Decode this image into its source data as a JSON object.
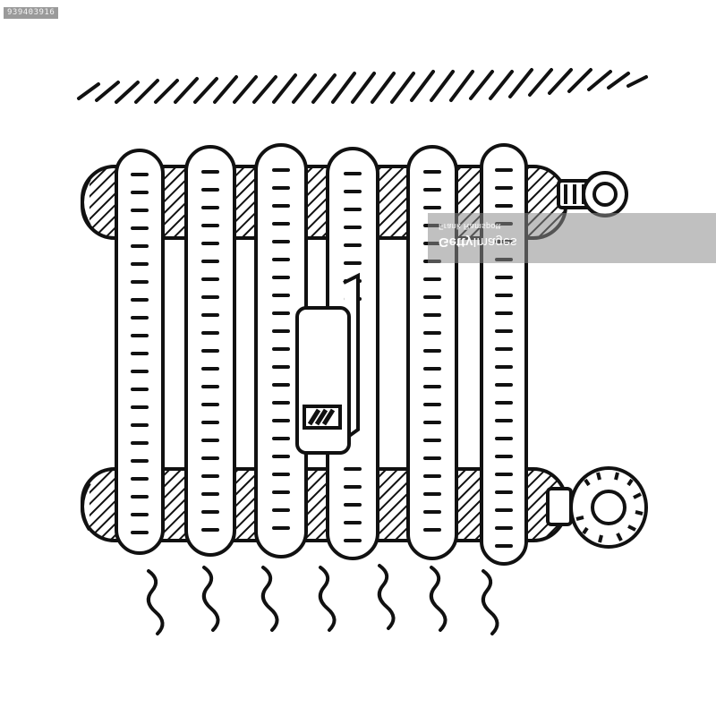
{
  "image": {
    "subject": "radiator",
    "style": "black-and-white hand-drawn sketch",
    "colors": {
      "ink": "#111111",
      "paper": "#ffffff",
      "watermark": "#8c8c8c"
    }
  },
  "watermark": {
    "stock_id": "939403916",
    "credit": "Frank Ramspott",
    "brand_bold": "Getty",
    "brand_light": "Images"
  }
}
